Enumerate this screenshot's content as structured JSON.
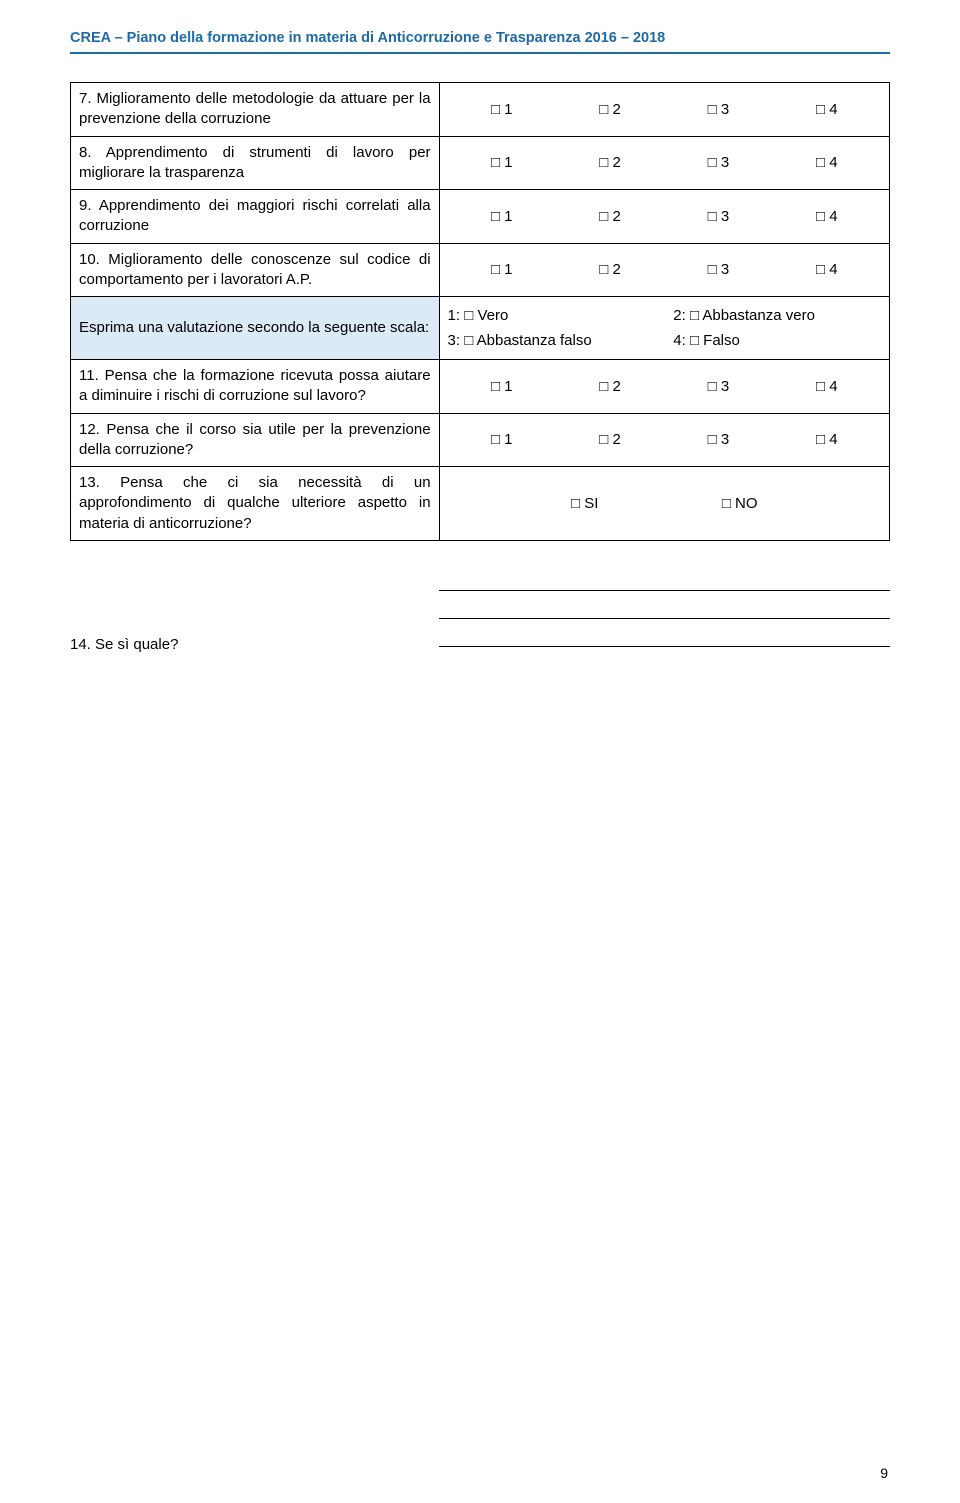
{
  "header": "CREA – Piano della formazione in materia di Anticorruzione e Trasparenza 2016 – 2018",
  "rows": [
    {
      "q": "7. Miglioramento delle metodologie da attuare per la prevenzione della corruzione",
      "type": "1234"
    },
    {
      "q": "8. Apprendimento di strumenti di lavoro per migliorare la trasparenza",
      "type": "1234"
    },
    {
      "q": "9. Apprendimento dei maggiori rischi correlati alla corruzione",
      "type": "1234"
    },
    {
      "q": "10. Miglioramento delle conoscenze sul codice di comportamento per i lavoratori A.P.",
      "type": "1234"
    },
    {
      "q": "Esprima una valutazione secondo la seguente scala:",
      "type": "scale"
    },
    {
      "q": "11. Pensa che la formazione ricevuta possa aiutare a diminuire i rischi di corruzione sul lavoro?",
      "type": "1234"
    },
    {
      "q": "12. Pensa che il corso sia utile per la prevenzione della corruzione?",
      "type": "1234"
    },
    {
      "q": "13. Pensa che ci sia necessità di un approfondimento di qualche ulteriore aspetto in materia di anticorruzione?",
      "type": "sino"
    }
  ],
  "opts1234": [
    "□ 1",
    "□ 2",
    "□ 3",
    "□ 4"
  ],
  "optsSINO": [
    "□ SI",
    "□ NO"
  ],
  "scale": {
    "c1": "1: □ Vero",
    "c2": "2: □ Abbastanza vero",
    "c3": "3: □ Abbastanza falso",
    "c4": "4: □ Falso"
  },
  "q14": "14. Se sì quale?",
  "pageNum": "9",
  "colors": {
    "headerBlue": "#1f6aa5",
    "scaleBg": "#dceaf6"
  }
}
